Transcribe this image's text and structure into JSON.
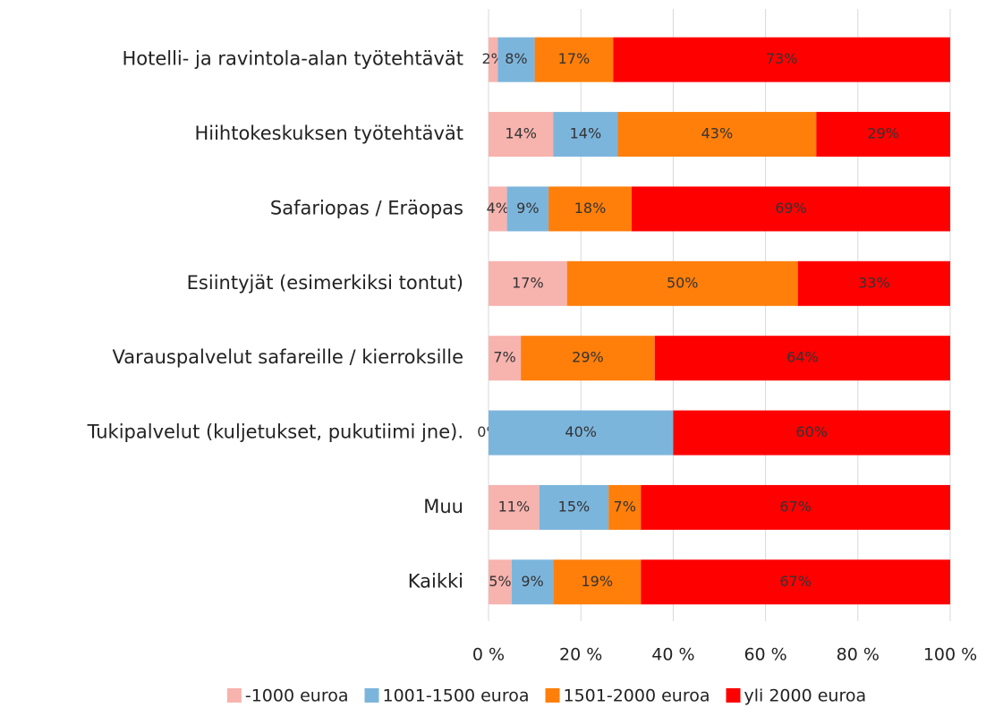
{
  "chart_data": {
    "type": "stacked_barh",
    "categories": [
      "Hotelli- ja ravintola-alan työtehtävät",
      "Hiihtokeskuksen työtehtävät",
      "Safariopas / Eräopas",
      "Esiintyjät (esimerkiksi tontut)",
      "Varauspalvelut safareille / kierroksille",
      "Tukipalvelut (kuljetukset, pukutiimi jne).",
      "Muu",
      "Kaikki"
    ],
    "series": [
      {
        "name": "-1000 euroa",
        "color": "#f7b3ae",
        "values": [
          2,
          14,
          4,
          17,
          7,
          0,
          11,
          5
        ],
        "value_labels": [
          "2%",
          "14%",
          "4%",
          "17%",
          "7%",
          "0%",
          "11%",
          "5%"
        ]
      },
      {
        "name": "1001-1500 euroa",
        "color": "#7cb5dc",
        "values": [
          8,
          14,
          9,
          0,
          0,
          40,
          15,
          9
        ],
        "value_labels": [
          "8%",
          "14%",
          "9%",
          null,
          null,
          "40%",
          "15%",
          "9%"
        ]
      },
      {
        "name": "1501-2000 euroa",
        "color": "#ff7f0a",
        "values": [
          17,
          43,
          18,
          50,
          29,
          0,
          7,
          19
        ],
        "value_labels": [
          "17%",
          "43%",
          "18%",
          "50%",
          "29%",
          null,
          "7%",
          "19%"
        ]
      },
      {
        "name": "yli 2000 euroa",
        "color": "#ff0000",
        "values": [
          73,
          29,
          69,
          33,
          64,
          60,
          67,
          67
        ],
        "value_labels": [
          "73%",
          "29%",
          "69%",
          "33%",
          "64%",
          "60%",
          "67%",
          "67%"
        ]
      }
    ],
    "xlim": [
      0,
      100
    ],
    "xticks": [
      {
        "value": 0,
        "label": "0 %"
      },
      {
        "value": 20,
        "label": "20 %"
      },
      {
        "value": 40,
        "label": "40 %"
      },
      {
        "value": 60,
        "label": "60 %"
      },
      {
        "value": 80,
        "label": "80 %"
      },
      {
        "value": 100,
        "label": "100 %"
      }
    ],
    "grid": true,
    "legend": "bottom"
  }
}
